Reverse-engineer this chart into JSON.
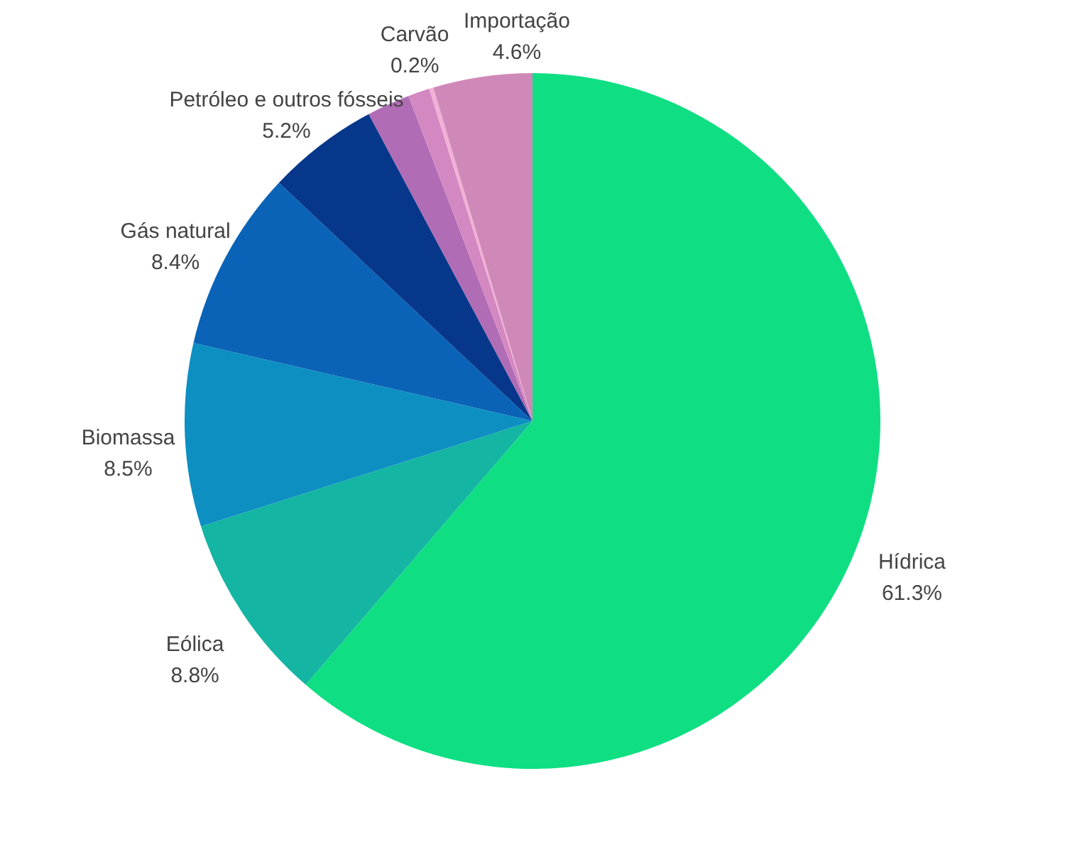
{
  "chart_data": {
    "type": "pie",
    "categories": [
      "Hídrica",
      "Eólica",
      "Biomassa",
      "Gás natural",
      "Petróleo e outros fósseis",
      null,
      null,
      "Carvão",
      "Importação"
    ],
    "values": [
      61.3,
      8.8,
      8.5,
      8.4,
      5.2,
      2.0,
      1.0,
      0.2,
      4.6
    ],
    "value_labels": [
      "61.3%",
      "8.8%",
      "8.5%",
      "8.4%",
      "5.2%",
      null,
      null,
      "0.2%",
      "4.6%"
    ],
    "colors": [
      "#0fdf82",
      "#14b5a2",
      "#0d8fc2",
      "#0a63b6",
      "#06378a",
      "#b06cb5",
      "#d388c2",
      "#f2b0d6",
      "#cf89b8"
    ]
  }
}
